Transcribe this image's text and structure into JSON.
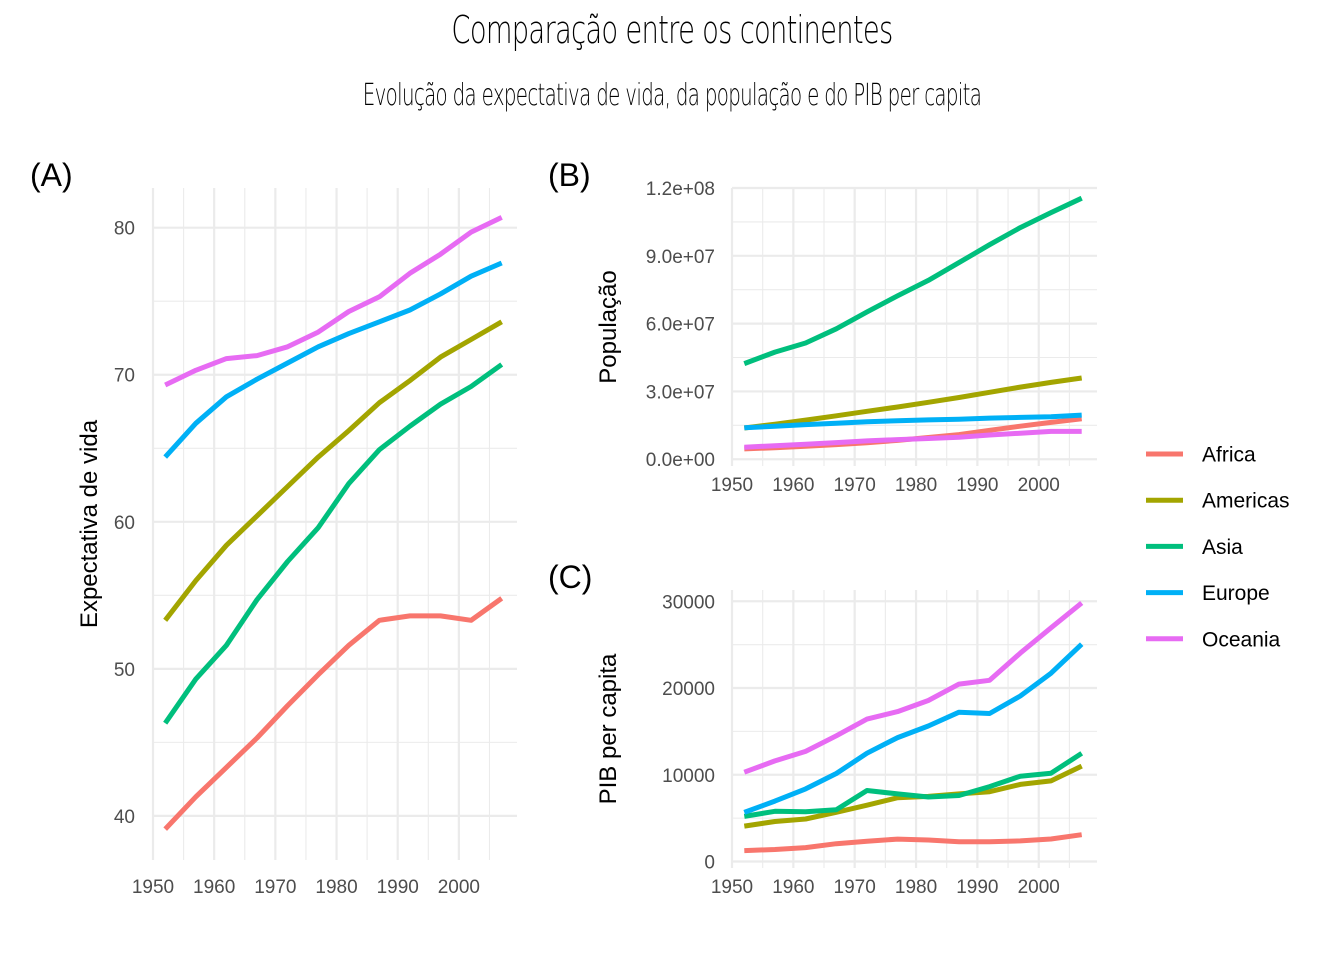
{
  "title": "Comparação entre os continentes",
  "subtitle": "Evolução da expectativa de vida, da população e do PIB per capita",
  "legend": {
    "position": "right",
    "entries": [
      {
        "name": "Africa",
        "color": "#F8766D"
      },
      {
        "name": "Americas",
        "color": "#A3A500"
      },
      {
        "name": "Asia",
        "color": "#00BF7D"
      },
      {
        "name": "Europe",
        "color": "#00B0F6"
      },
      {
        "name": "Oceania",
        "color": "#E76BF3"
      }
    ]
  },
  "chart_data": [
    {
      "tag": "(A)",
      "type": "line",
      "title": "",
      "xlabel": "",
      "ylabel": "Expectativa de vida",
      "x": [
        1952,
        1957,
        1962,
        1967,
        1972,
        1977,
        1982,
        1987,
        1992,
        1997,
        2002,
        2007
      ],
      "xlim": [
        1950,
        2009.5
      ],
      "ylim": [
        37.0,
        82.7
      ],
      "xticks": [
        1950,
        1960,
        1970,
        1980,
        1990,
        2000
      ],
      "xtick_labels": [
        "1950",
        "1960",
        "1970",
        "1980",
        "1990",
        "2000"
      ],
      "yticks": [
        40,
        50,
        60,
        70,
        80
      ],
      "ytick_labels": [
        "40",
        "50",
        "60",
        "70",
        "80"
      ],
      "yminor": [
        45,
        55,
        65,
        75
      ],
      "grid": true,
      "series": [
        {
          "name": "Africa",
          "values": [
            39.1,
            41.3,
            43.3,
            45.3,
            47.5,
            49.6,
            51.6,
            53.3,
            53.6,
            53.6,
            53.3,
            54.8
          ]
        },
        {
          "name": "Americas",
          "values": [
            53.3,
            56.0,
            58.4,
            60.4,
            62.4,
            64.4,
            66.2,
            68.1,
            69.6,
            71.2,
            72.4,
            73.6
          ]
        },
        {
          "name": "Asia",
          "values": [
            46.3,
            49.3,
            51.6,
            54.7,
            57.3,
            59.6,
            62.6,
            64.9,
            66.5,
            68.0,
            69.2,
            70.7
          ]
        },
        {
          "name": "Europe",
          "values": [
            64.4,
            66.7,
            68.5,
            69.7,
            70.8,
            71.9,
            72.8,
            73.6,
            74.4,
            75.5,
            76.7,
            77.6
          ]
        },
        {
          "name": "Oceania",
          "values": [
            69.3,
            70.3,
            71.1,
            71.3,
            71.9,
            72.9,
            74.3,
            75.3,
            76.9,
            78.2,
            79.7,
            80.7
          ]
        }
      ]
    },
    {
      "tag": "(B)",
      "type": "line",
      "title": "",
      "xlabel": "",
      "ylabel": "População",
      "x": [
        1952,
        1957,
        1962,
        1967,
        1972,
        1977,
        1982,
        1987,
        1992,
        1997,
        2002,
        2007
      ],
      "xlim": [
        1950,
        2009.5
      ],
      "ylim": [
        -3000000,
        120000000
      ],
      "xticks": [
        1950,
        1960,
        1970,
        1980,
        1990,
        2000
      ],
      "xtick_labels": [
        "1950",
        "1960",
        "1970",
        "1980",
        "1990",
        "2000"
      ],
      "yticks": [
        0,
        30000000,
        60000000,
        90000000,
        120000000
      ],
      "ytick_labels": [
        "0.0e+00",
        "3.0e+07",
        "6.0e+07",
        "9.0e+07",
        "1.2e+08"
      ],
      "yminor": [
        15000000,
        45000000,
        75000000,
        105000000
      ],
      "grid": true,
      "series": [
        {
          "name": "Africa",
          "values": [
            4570000,
            5090000,
            5710000,
            6450000,
            7300000,
            8330000,
            9600000,
            10900000,
            12800000,
            14600000,
            16300000,
            17900000
          ]
        },
        {
          "name": "Americas",
          "values": [
            13800000,
            15500000,
            17300000,
            19200000,
            21200000,
            23100000,
            25200000,
            27300000,
            29600000,
            31900000,
            34000000,
            35950000
          ]
        },
        {
          "name": "Asia",
          "values": [
            42300000,
            47400000,
            51400000,
            57700000,
            65200000,
            72300000,
            79100000,
            87000000,
            94900000,
            102500000,
            109100000,
            115500000
          ]
        },
        {
          "name": "Europe",
          "values": [
            13900000,
            14600000,
            15300000,
            15900000,
            16600000,
            17000000,
            17400000,
            17700000,
            18200000,
            18500000,
            18800000,
            19500000
          ]
        },
        {
          "name": "Oceania",
          "values": [
            5340000,
            5970000,
            6600000,
            7370000,
            8100000,
            8660000,
            9170000,
            9760000,
            10700000,
            11500000,
            12300000,
            12300000
          ]
        }
      ]
    },
    {
      "tag": "(C)",
      "type": "line",
      "title": "",
      "xlabel": "",
      "ylabel": "PIB per capita",
      "x": [
        1952,
        1957,
        1962,
        1967,
        1972,
        1977,
        1982,
        1987,
        1992,
        1997,
        2002,
        2007
      ],
      "xlim": [
        1950,
        2009.5
      ],
      "ylim": [
        -750,
        31300
      ],
      "xticks": [
        1950,
        1960,
        1970,
        1980,
        1990,
        2000
      ],
      "xtick_labels": [
        "1950",
        "1960",
        "1970",
        "1980",
        "1990",
        "2000"
      ],
      "yticks": [
        0,
        10000,
        20000,
        30000
      ],
      "ytick_labels": [
        "0",
        "10000",
        "20000",
        "30000"
      ],
      "yminor": [
        5000,
        15000,
        25000
      ],
      "grid": true,
      "series": [
        {
          "name": "Africa",
          "values": [
            1253,
            1385,
            1598,
            2050,
            2340,
            2586,
            2482,
            2283,
            2282,
            2379,
            2599,
            3089
          ]
        },
        {
          "name": "Americas",
          "values": [
            4079,
            4616,
            4902,
            5668,
            6491,
            7352,
            7507,
            7793,
            8045,
            8890,
            9288,
            11003
          ]
        },
        {
          "name": "Asia",
          "values": [
            5195,
            5788,
            5729,
            5971,
            8187,
            7791,
            7435,
            7608,
            8640,
            9834,
            10174,
            12473
          ]
        },
        {
          "name": "Europe",
          "values": [
            5661,
            6963,
            8365,
            10144,
            12480,
            14283,
            15618,
            17214,
            17062,
            19077,
            21712,
            25054
          ]
        },
        {
          "name": "Oceania",
          "values": [
            10298,
            11599,
            12696,
            14495,
            16417,
            17284,
            18555,
            20448,
            20894,
            24024,
            26939,
            29810
          ]
        }
      ]
    }
  ]
}
